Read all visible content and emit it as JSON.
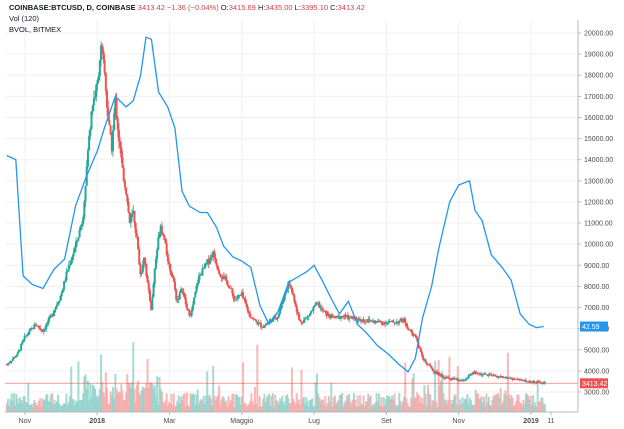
{
  "legend": {
    "symbol": "COINBASE:BTCUSD, D, COINBASE",
    "last": "3413.42",
    "change": "−1.36 (−0.04%)",
    "o_label": "O:",
    "o_value": "3415.69",
    "h_label": "H:",
    "h_value": "3435.00",
    "l_label": "L:",
    "l_value": "3395.10",
    "c_label": "C:",
    "c_value": "3413.42",
    "vol_label": "Vol (120)",
    "bvol_label": "BVOL, BITMEX"
  },
  "colors": {
    "up": "#26a69a",
    "down": "#ef5350",
    "up_vol": "#8fcfc8",
    "down_vol": "#f4a8a6",
    "bvol_line": "#2196f3",
    "price_badge": "#ef5350",
    "bvol_badge": "#2196f3"
  },
  "chart_data": {
    "type": "candlestick",
    "ylim": [
      2000,
      20500
    ],
    "y_ticks": [
      "20000.00",
      "19000.00",
      "18000.00",
      "17000.00",
      "16000.00",
      "15000.00",
      "14000.00",
      "13000.00",
      "12000.00",
      "11000.00",
      "10000.00",
      "9000.00",
      "8000.00",
      "7000.00",
      "6000.00",
      "5000.00",
      "4000.00",
      "3000.00"
    ],
    "x_ticks": [
      "Nov",
      "2018",
      "Mar",
      "Maggio",
      "Lug",
      "Set",
      "Nov",
      "2019",
      "11"
    ],
    "x_tick_months": [
      0,
      2,
      4,
      6,
      8,
      10,
      12,
      14,
      14.55
    ],
    "x_range_months": [
      -0.55,
      15.3
    ],
    "last_price": 3413.42,
    "last_price_label": "3413.42",
    "bvol_last_label": "42.59",
    "price_path": [
      [
        -0.5,
        4300
      ],
      [
        -0.2,
        4800
      ],
      [
        0.0,
        5600
      ],
      [
        0.3,
        6200
      ],
      [
        0.5,
        5900
      ],
      [
        0.7,
        6500
      ],
      [
        1.0,
        7600
      ],
      [
        1.2,
        8900
      ],
      [
        1.4,
        9900
      ],
      [
        1.6,
        11200
      ],
      [
        1.75,
        14500
      ],
      [
        1.85,
        16500
      ],
      [
        2.0,
        17500
      ],
      [
        2.1,
        19300
      ],
      [
        2.2,
        18200
      ],
      [
        2.3,
        16000
      ],
      [
        2.4,
        14500
      ],
      [
        2.5,
        16800
      ],
      [
        2.6,
        15000
      ],
      [
        2.7,
        13500
      ],
      [
        2.8,
        12500
      ],
      [
        2.9,
        11000
      ],
      [
        3.0,
        11500
      ],
      [
        3.1,
        10200
      ],
      [
        3.2,
        8500
      ],
      [
        3.3,
        9500
      ],
      [
        3.4,
        8000
      ],
      [
        3.5,
        6900
      ],
      [
        3.6,
        9000
      ],
      [
        3.75,
        11000
      ],
      [
        3.9,
        9800
      ],
      [
        4.0,
        8900
      ],
      [
        4.1,
        8400
      ],
      [
        4.2,
        7300
      ],
      [
        4.35,
        7900
      ],
      [
        4.5,
        6800
      ],
      [
        4.6,
        6700
      ],
      [
        4.8,
        8400
      ],
      [
        5.0,
        9000
      ],
      [
        5.2,
        9600
      ],
      [
        5.4,
        8600
      ],
      [
        5.6,
        8200
      ],
      [
        5.8,
        7400
      ],
      [
        6.0,
        7600
      ],
      [
        6.2,
        6700
      ],
      [
        6.4,
        6300
      ],
      [
        6.6,
        6100
      ],
      [
        6.8,
        6400
      ],
      [
        7.0,
        6600
      ],
      [
        7.2,
        7700
      ],
      [
        7.3,
        8200
      ],
      [
        7.45,
        7400
      ],
      [
        7.6,
        6300
      ],
      [
        7.8,
        6500
      ],
      [
        8.0,
        7000
      ],
      [
        8.1,
        7200
      ],
      [
        8.2,
        6900
      ],
      [
        8.4,
        6600
      ],
      [
        8.6,
        6500
      ],
      [
        8.8,
        6600
      ],
      [
        9.0,
        6500
      ],
      [
        9.4,
        6400
      ],
      [
        9.8,
        6300
      ],
      [
        10.2,
        6300
      ],
      [
        10.5,
        6400
      ],
      [
        10.6,
        6000
      ],
      [
        10.8,
        5600
      ],
      [
        11.0,
        4600
      ],
      [
        11.3,
        4000
      ],
      [
        11.6,
        3700
      ],
      [
        11.9,
        3600
      ],
      [
        12.1,
        3500
      ],
      [
        12.4,
        3900
      ],
      [
        12.8,
        3800
      ],
      [
        13.2,
        3700
      ],
      [
        13.6,
        3600
      ],
      [
        13.9,
        3500
      ],
      [
        14.2,
        3450
      ],
      [
        14.4,
        3413.42
      ]
    ],
    "bvol_path": [
      [
        -0.5,
        14200
      ],
      [
        -0.25,
        14000
      ],
      [
        -0.05,
        8500
      ],
      [
        0.2,
        8100
      ],
      [
        0.5,
        7900
      ],
      [
        0.8,
        8800
      ],
      [
        1.1,
        9300
      ],
      [
        1.4,
        11800
      ],
      [
        1.7,
        13200
      ],
      [
        2.0,
        14400
      ],
      [
        2.2,
        15500
      ],
      [
        2.5,
        17000
      ],
      [
        2.8,
        16500
      ],
      [
        3.0,
        16800
      ],
      [
        3.2,
        18000
      ],
      [
        3.35,
        19800
      ],
      [
        3.5,
        19700
      ],
      [
        3.7,
        17200
      ],
      [
        3.95,
        16500
      ],
      [
        4.15,
        15500
      ],
      [
        4.35,
        12500
      ],
      [
        4.55,
        11800
      ],
      [
        4.85,
        11500
      ],
      [
        5.05,
        11500
      ],
      [
        5.3,
        10800
      ],
      [
        5.5,
        9900
      ],
      [
        5.75,
        9400
      ],
      [
        6.0,
        9200
      ],
      [
        6.25,
        8900
      ],
      [
        6.5,
        7100
      ],
      [
        6.75,
        6200
      ],
      [
        7.0,
        6800
      ],
      [
        7.3,
        8200
      ],
      [
        7.5,
        8400
      ],
      [
        7.8,
        8700
      ],
      [
        8.0,
        9000
      ],
      [
        8.25,
        8200
      ],
      [
        8.45,
        7500
      ],
      [
        8.7,
        6700
      ],
      [
        8.95,
        7300
      ],
      [
        9.2,
        6200
      ],
      [
        9.45,
        5800
      ],
      [
        9.75,
        5200
      ],
      [
        10.05,
        4800
      ],
      [
        10.35,
        4300
      ],
      [
        10.6,
        3950
      ],
      [
        10.8,
        4600
      ],
      [
        11.0,
        6500
      ],
      [
        11.25,
        8000
      ],
      [
        11.45,
        9800
      ],
      [
        11.75,
        12000
      ],
      [
        12.0,
        12800
      ],
      [
        12.3,
        13000
      ],
      [
        12.45,
        11600
      ],
      [
        12.65,
        11100
      ],
      [
        12.9,
        9500
      ],
      [
        13.2,
        8900
      ],
      [
        13.45,
        8300
      ],
      [
        13.7,
        6700
      ],
      [
        13.95,
        6200
      ],
      [
        14.15,
        6050
      ],
      [
        14.35,
        6100
      ]
    ]
  }
}
